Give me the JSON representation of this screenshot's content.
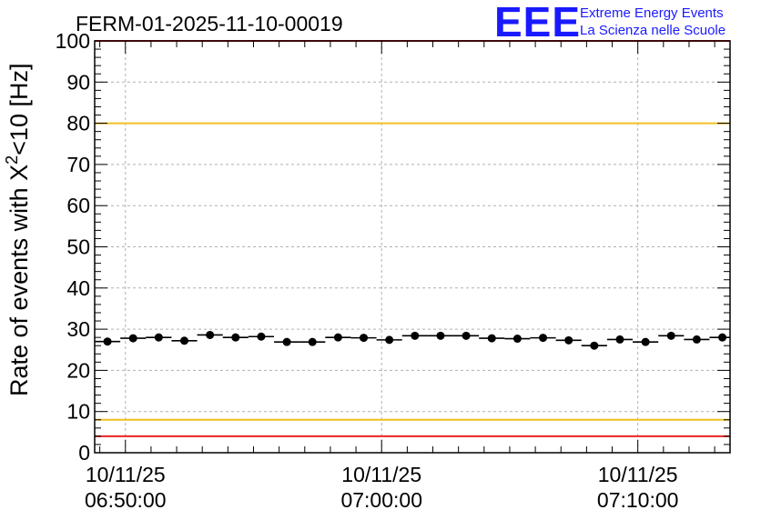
{
  "logo": {
    "text": "EEE",
    "line1": "Extreme Energy Events",
    "line2": "La Scienza nelle Scuole",
    "color": "#1a1aff"
  },
  "chart_data": {
    "type": "scatter",
    "title": "FERM-01-2025-11-10-00019",
    "ylabel_main": "Rate of events with X",
    "ylabel_sup": "2",
    "ylabel_tail": "<10 [Hz]",
    "xlabel": "",
    "ylim": [
      0,
      100
    ],
    "yticks": [
      "0",
      "10",
      "20",
      "30",
      "40",
      "50",
      "60",
      "70",
      "80",
      "90",
      "100"
    ],
    "xlim_minutes": [
      -1.2,
      23.6
    ],
    "xticks": [
      {
        "minute": 0,
        "date": "10/11/25",
        "time": "06:50:00"
      },
      {
        "minute": 10,
        "date": "10/11/25",
        "time": "07:00:00"
      },
      {
        "minute": 20,
        "date": "10/11/25",
        "time": "07:10:00"
      }
    ],
    "grid": true,
    "bin_width_minutes": 1,
    "series": [
      {
        "name": "rate",
        "color": "#000000",
        "x_minutes": [
          -0.7,
          0.3,
          1.3,
          2.3,
          3.3,
          4.3,
          5.3,
          6.3,
          7.3,
          8.3,
          9.3,
          10.3,
          11.3,
          12.3,
          13.3,
          14.3,
          15.3,
          16.3,
          17.3,
          18.3,
          19.3,
          20.3,
          21.3,
          22.3,
          23.3
        ],
        "values": [
          27.0,
          27.8,
          28.0,
          27.2,
          28.6,
          28.0,
          28.2,
          26.9,
          26.9,
          28.0,
          27.9,
          27.4,
          28.4,
          28.4,
          28.4,
          27.8,
          27.7,
          27.9,
          27.3,
          26.0,
          27.5,
          26.9,
          28.4,
          27.5,
          28.0
        ]
      }
    ],
    "reference_lines": [
      {
        "value": 4,
        "color": "#ee2222"
      },
      {
        "value": 8,
        "color": "#f0c020"
      },
      {
        "value": 80,
        "color": "#f0c020"
      },
      {
        "value": 100,
        "color": "#ee2222"
      }
    ]
  }
}
